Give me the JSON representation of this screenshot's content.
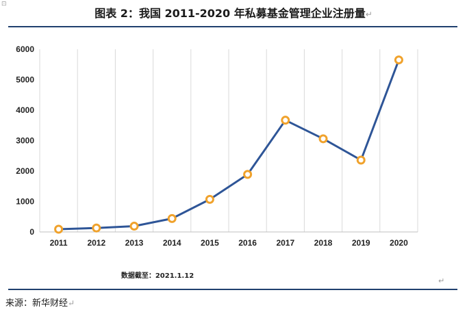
{
  "title": "图表 2：我国 2011-2020 年私募基金管理企业注册量",
  "note": "数据截至：2021.1.12",
  "source": "来源：新华财经",
  "marks": {
    "paragraph": "↵",
    "corner": "⊡"
  },
  "colors": {
    "line": "#2e5597",
    "marker": "#f0a22c",
    "grid": "#d9d9d9",
    "rule": "#1f3f6e"
  },
  "chart_data": {
    "type": "line",
    "title": "图表 2：我国 2011-2020 年私募基金管理企业注册量",
    "xlabel": "",
    "ylabel": "",
    "categories": [
      "2011",
      "2012",
      "2013",
      "2014",
      "2015",
      "2016",
      "2017",
      "2018",
      "2019",
      "2020"
    ],
    "series": [
      {
        "values": [
          90,
          130,
          190,
          440,
          1070,
          1890,
          3670,
          3060,
          2360,
          5650
        ]
      }
    ],
    "ylim": [
      0,
      6000
    ],
    "yticks": [
      0,
      1000,
      2000,
      3000,
      4000,
      5000,
      6000
    ],
    "grid": "vertical",
    "legend": "none"
  }
}
